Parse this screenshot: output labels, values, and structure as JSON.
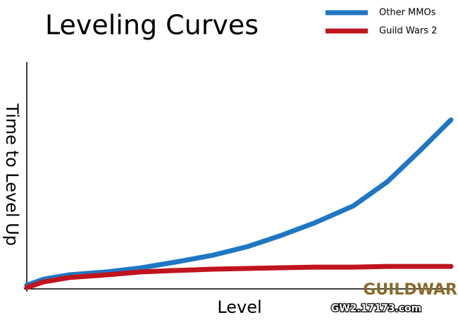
{
  "chart_data": {
    "type": "line",
    "title": "Leveling Curves",
    "x_label": "Level",
    "y_label": "Time to Level Up",
    "x": [
      0,
      4,
      10,
      19,
      27,
      35,
      44,
      52,
      60,
      68,
      77,
      85,
      93,
      100
    ],
    "xlim": [
      0,
      100
    ],
    "ylim": [
      0,
      100
    ],
    "grid": false,
    "legend": "top-right",
    "series": [
      {
        "name": "Other MMOs",
        "color": "#1f77c4",
        "values": [
          1.6,
          4.3,
          6.2,
          7.5,
          9.3,
          11.8,
          14.9,
          18.6,
          23.6,
          29.2,
          36.6,
          47.2,
          61.5,
          74.5
        ]
      },
      {
        "name": "Guild Wars 2",
        "color": "#c0141c",
        "values": [
          0.6,
          3.1,
          5.0,
          6.2,
          7.5,
          8.1,
          8.7,
          9.0,
          9.3,
          9.6,
          9.6,
          9.9,
          9.9,
          9.9
        ]
      }
    ],
    "watermark": {
      "logo": "GUILDWARS",
      "site": "GW2.17173.com"
    }
  }
}
